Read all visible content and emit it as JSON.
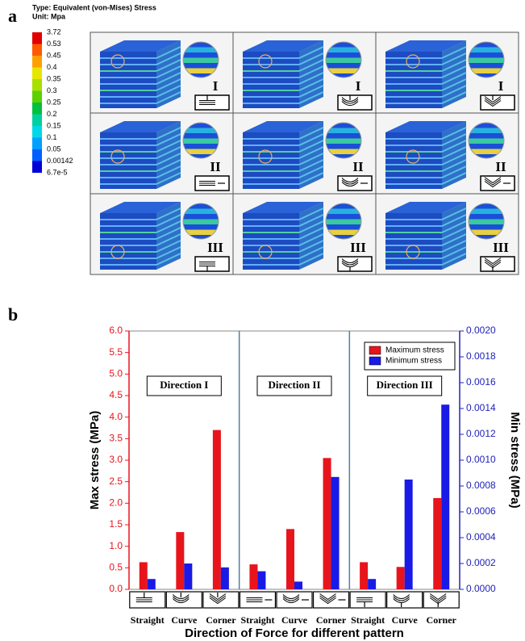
{
  "panel_a": {
    "label": "a",
    "legend_title": "Type: Equivalent (von-Mises) Stress",
    "unit": "Unit: Mpa",
    "scale_labels": [
      "3.72",
      "0.53",
      "0.45",
      "0.4",
      "0.35",
      "0.3",
      "0.25",
      "0.2",
      "0.15",
      "0.1",
      "0.05",
      "0.00142",
      "6.7e-5"
    ],
    "scale_colors": [
      "#e00000",
      "#ff5a00",
      "#ffa000",
      "#e6e600",
      "#a8e000",
      "#5cd000",
      "#00c040",
      "#00d0a0",
      "#00d8e8",
      "#00a0ff",
      "#0060ff",
      "#0000d8"
    ],
    "row_labels": [
      "I",
      "II",
      "III"
    ]
  },
  "chart_data": {
    "type": "bar",
    "panel_label": "b",
    "categories": [
      "Straight",
      "Curve",
      "Corner",
      "Straight",
      "Curve",
      "Corner",
      "Straight",
      "Curve",
      "Corner"
    ],
    "groups": [
      "Direction I",
      "Direction II",
      "Direction III"
    ],
    "series": [
      {
        "name": "Maximum stress",
        "color": "#e8141c",
        "values": [
          0.63,
          1.33,
          3.7,
          0.58,
          1.4,
          3.05,
          0.63,
          0.52,
          2.12
        ]
      },
      {
        "name": "Minimum stress",
        "color": "#1a1ae6",
        "axis": "y2",
        "values": [
          8e-05,
          0.0002,
          0.00017,
          0.00014,
          6e-05,
          0.00087,
          8e-05,
          0.00085,
          0.00143
        ]
      }
    ],
    "ylabel": "Max stress (MPa)",
    "y2label": "Min stress (MPa)",
    "xlabel": "Direction of Force for different pattern",
    "ylim": [
      0,
      6
    ],
    "yticks": [
      {
        "value": 0,
        "label": "0.0"
      },
      0.5,
      {
        "value": 1,
        "label": "1.0"
      },
      1.5,
      {
        "value": 2,
        "label": "2.0"
      },
      2.5,
      {
        "value": 3,
        "label": "3.0"
      },
      3.5,
      {
        "value": 4,
        "label": "4.0"
      },
      4.5,
      {
        "value": 5,
        "label": "5.0"
      },
      5.5,
      {
        "value": 6,
        "label": "6.0"
      }
    ],
    "y2lim": [
      0,
      0.002
    ],
    "y2ticks": [
      {
        "value": 0,
        "label": "0.0000"
      },
      {
        "value": 0.0002,
        "label": "0.0002"
      },
      {
        "value": 0.0004,
        "label": "0.0004"
      },
      {
        "value": 0.0006,
        "label": "0.0006"
      },
      {
        "value": 0.0008,
        "label": "0.0008"
      },
      {
        "value": 0.001,
        "label": "0.0010"
      },
      {
        "value": 0.0012,
        "label": "0.0012"
      },
      {
        "value": 0.0014,
        "label": "0.0014"
      },
      {
        "value": 0.0016,
        "label": "0.0016"
      },
      {
        "value": 0.0018,
        "label": "0.0018"
      },
      {
        "value": 0.002,
        "label": "0.0020"
      }
    ],
    "y_axis_color": "#e8141c",
    "y2_axis_color": "#2222bb",
    "legend": "top-right",
    "grid": false
  }
}
